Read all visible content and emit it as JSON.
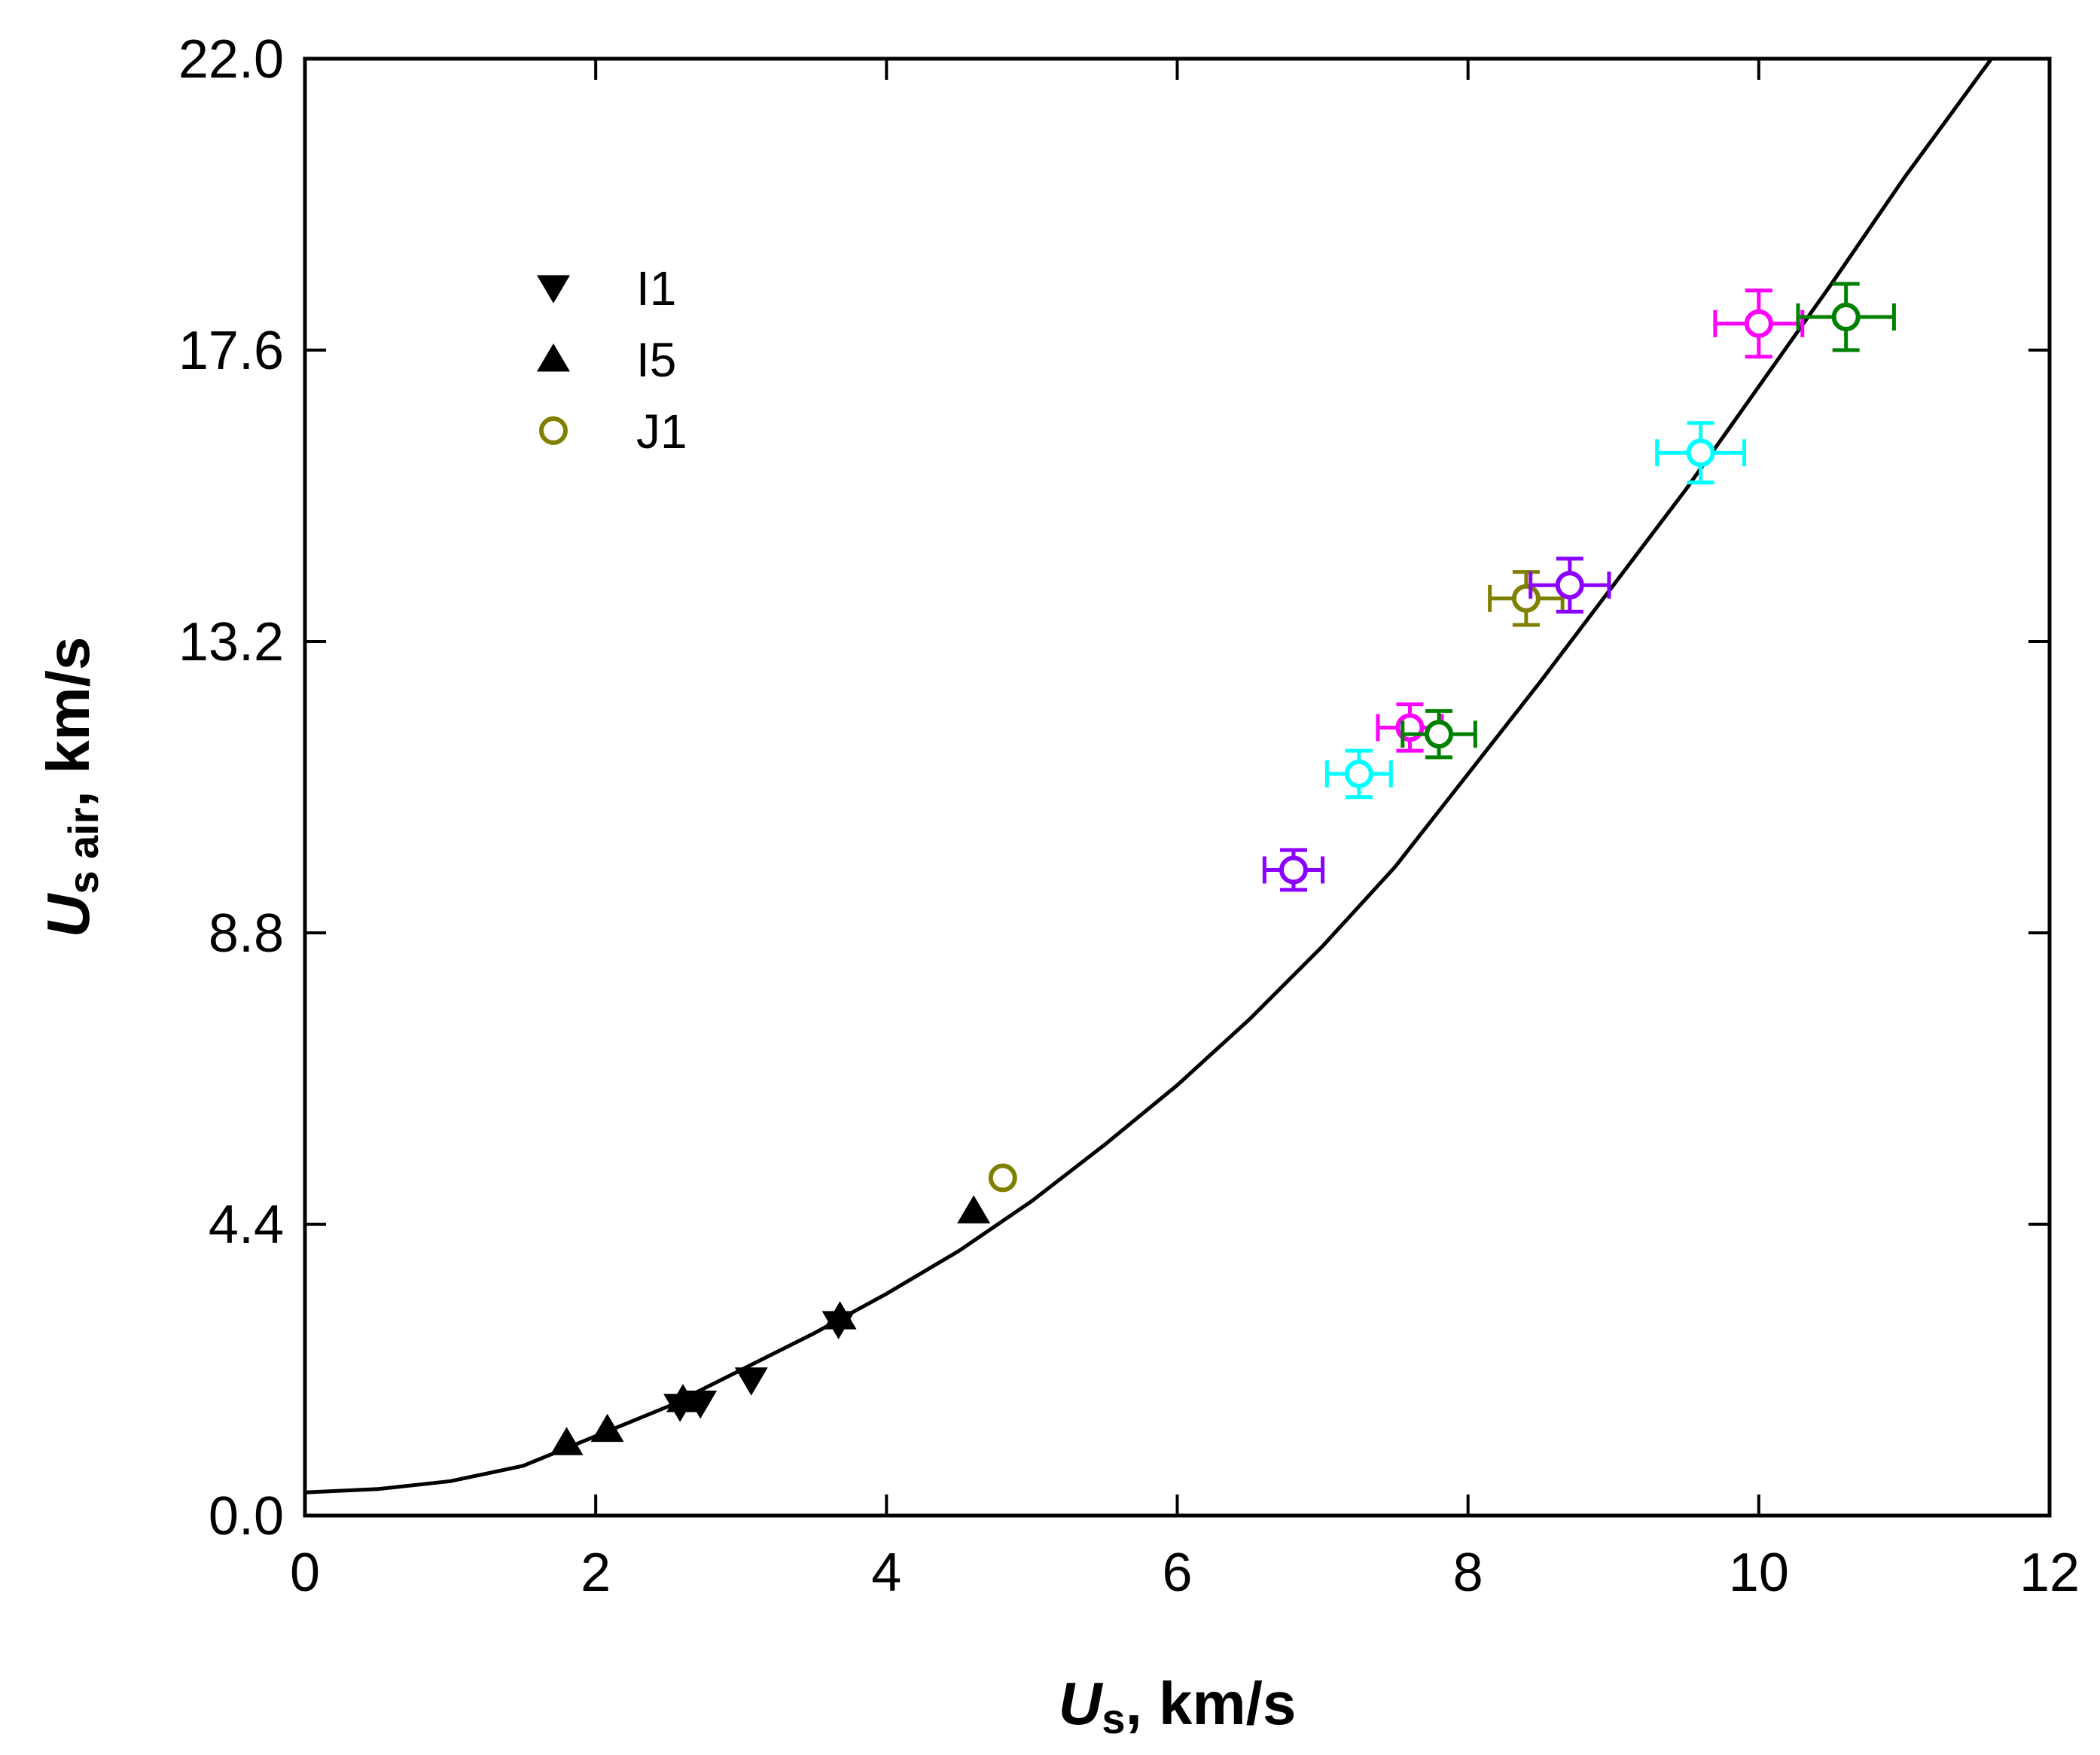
{
  "chart_data": {
    "type": "scatter",
    "title": "",
    "xlabel": {
      "main": "U",
      "sub": "s",
      "rest": ", km/s"
    },
    "ylabel": {
      "main": "U",
      "sub": "s air",
      "rest": ", km/s"
    },
    "xlim": [
      0,
      12
    ],
    "ylim": [
      0,
      22
    ],
    "xticks": [
      0,
      2,
      4,
      6,
      8,
      10,
      12
    ],
    "xtick_labels": [
      "0",
      "2",
      "4",
      "6",
      "8",
      "10",
      "12"
    ],
    "yticks": [
      0,
      4.4,
      8.8,
      13.2,
      17.6,
      22
    ],
    "ytick_labels": [
      "0.0",
      "4.4",
      "8.8",
      "13.2",
      "17.6",
      "22.0"
    ],
    "grid": false,
    "legend_position": "top-left",
    "legend": [
      {
        "label": "I1",
        "marker": "triangle-down",
        "color": "#000000"
      },
      {
        "label": "I5",
        "marker": "triangle-up",
        "color": "#000000"
      },
      {
        "label": "J1",
        "marker": "circle-open",
        "color": "#808000"
      }
    ],
    "series": [
      {
        "name": "I1",
        "marker": "triangle-down",
        "color": "#000000",
        "x": [
          2.58,
          2.72,
          3.07,
          3.67
        ],
        "y": [
          1.65,
          1.7,
          2.05,
          2.9
        ]
      },
      {
        "name": "I5",
        "marker": "triangle-up",
        "color": "#000000",
        "x": [
          1.8,
          2.08,
          2.6,
          3.68,
          4.6
        ],
        "y": [
          1.1,
          1.3,
          1.75,
          3.0,
          4.6
        ]
      },
      {
        "name": "J1",
        "marker": "circle-open",
        "color": "#808000",
        "x": [
          4.8
        ],
        "y": [
          5.1
        ]
      }
    ],
    "error_points": [
      {
        "x": 6.8,
        "y": 9.75,
        "xerr": 0.2,
        "yerr": 0.3,
        "color": "#8B00FF"
      },
      {
        "x": 7.25,
        "y": 11.2,
        "xerr": 0.22,
        "yerr": 0.35,
        "color": "#00FFFF"
      },
      {
        "x": 7.6,
        "y": 11.9,
        "xerr": 0.22,
        "yerr": 0.35,
        "color": "#FF00FF"
      },
      {
        "x": 7.8,
        "y": 11.8,
        "xerr": 0.25,
        "yerr": 0.35,
        "color": "#008000"
      },
      {
        "x": 8.4,
        "y": 13.85,
        "xerr": 0.25,
        "yerr": 0.4,
        "color": "#808000"
      },
      {
        "x": 8.7,
        "y": 14.05,
        "xerr": 0.27,
        "yerr": 0.4,
        "color": "#8B00FF"
      },
      {
        "x": 9.6,
        "y": 16.05,
        "xerr": 0.3,
        "yerr": 0.45,
        "color": "#00FFFF"
      },
      {
        "x": 10.0,
        "y": 18.0,
        "xerr": 0.3,
        "yerr": 0.5,
        "color": "#FF00FF"
      },
      {
        "x": 10.6,
        "y": 18.1,
        "xerr": 0.33,
        "yerr": 0.5,
        "color": "#008000"
      }
    ],
    "fit_curve": {
      "color": "#000000",
      "x": [
        0,
        0.5,
        1,
        1.5,
        2,
        2.5,
        3,
        3.5,
        4,
        4.5,
        5,
        5.5,
        6,
        6.5,
        7,
        7.5,
        8,
        8.5,
        9,
        9.5,
        10,
        10.5,
        11,
        11.6
      ],
      "y": [
        0.35,
        0.4,
        0.52,
        0.75,
        1.2,
        1.65,
        2.2,
        2.75,
        3.35,
        4.0,
        4.75,
        5.6,
        6.5,
        7.5,
        8.6,
        9.8,
        11.2,
        12.6,
        14.05,
        15.5,
        17.05,
        18.6,
        20.2,
        22.0
      ]
    }
  }
}
